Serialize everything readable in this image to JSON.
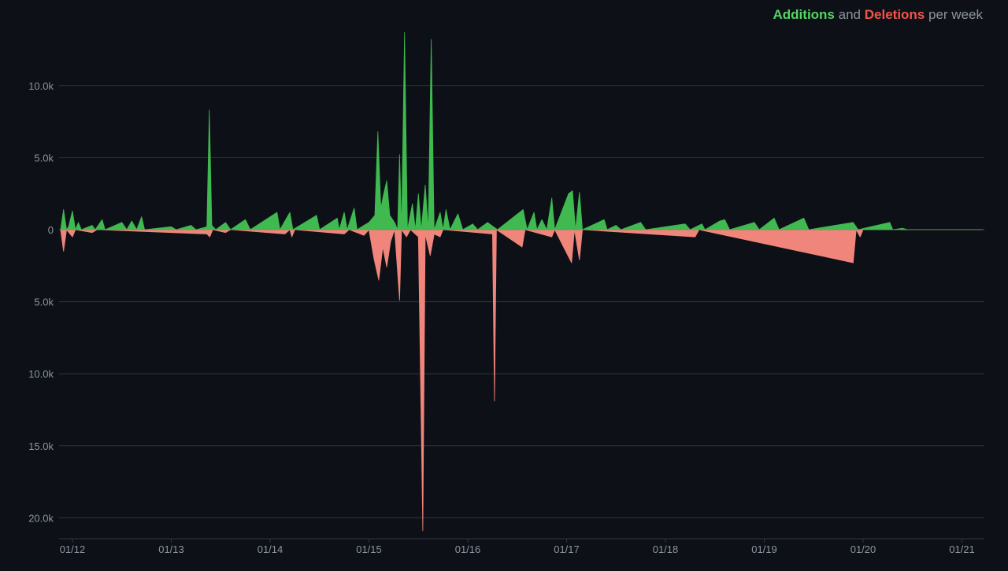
{
  "legend": {
    "additions": "Additions",
    "and": "and",
    "deletions": "Deletions",
    "per": "per week"
  },
  "colors": {
    "background": "#0d1117",
    "additions": "#3fb950",
    "deletions": "#f0857b",
    "grid": "#30363d",
    "axis_text": "#8b949e"
  },
  "chart_data": {
    "type": "area",
    "title": "Additions and Deletions per week",
    "xlabel": "",
    "ylabel": "",
    "grid": true,
    "legend_position": "top-right",
    "x_domain": [
      "01/12",
      "01/21"
    ],
    "xlim": [
      11.9,
      21.2
    ],
    "ylim": [
      -21000,
      13600
    ],
    "x_ticks": [
      "01/12",
      "01/13",
      "01/14",
      "01/15",
      "01/16",
      "01/17",
      "01/18",
      "01/19",
      "01/20",
      "01/21"
    ],
    "y_ticks": [
      {
        "value": 10000,
        "label": "10.0k"
      },
      {
        "value": 5000,
        "label": "5.0k"
      },
      {
        "value": 0,
        "label": "0"
      },
      {
        "value": -5000,
        "label": "5.0k"
      },
      {
        "value": -10000,
        "label": "10.0k"
      },
      {
        "value": -15000,
        "label": "15.0k"
      },
      {
        "value": -20000,
        "label": "20.0k"
      }
    ],
    "series": [
      {
        "name": "Additions",
        "points": [
          [
            11.88,
            0
          ],
          [
            11.91,
            1400
          ],
          [
            11.94,
            0
          ],
          [
            11.96,
            200
          ],
          [
            12.0,
            1300
          ],
          [
            12.03,
            0
          ],
          [
            12.06,
            500
          ],
          [
            12.09,
            0
          ],
          [
            12.2,
            300
          ],
          [
            12.23,
            0
          ],
          [
            12.3,
            700
          ],
          [
            12.33,
            0
          ],
          [
            12.5,
            500
          ],
          [
            12.55,
            0
          ],
          [
            12.6,
            600
          ],
          [
            12.65,
            0
          ],
          [
            12.7,
            900
          ],
          [
            12.73,
            0
          ],
          [
            13.0,
            200
          ],
          [
            13.05,
            0
          ],
          [
            13.2,
            300
          ],
          [
            13.25,
            0
          ],
          [
            13.36,
            200
          ],
          [
            13.385,
            8300
          ],
          [
            13.41,
            300
          ],
          [
            13.45,
            0
          ],
          [
            13.55,
            500
          ],
          [
            13.6,
            0
          ],
          [
            13.75,
            700
          ],
          [
            13.8,
            0
          ],
          [
            14.07,
            1200
          ],
          [
            14.1,
            0
          ],
          [
            14.2,
            1200
          ],
          [
            14.23,
            0
          ],
          [
            14.47,
            1000
          ],
          [
            14.5,
            0
          ],
          [
            14.68,
            800
          ],
          [
            14.7,
            0
          ],
          [
            14.75,
            1200
          ],
          [
            14.78,
            0
          ],
          [
            14.85,
            1500
          ],
          [
            14.88,
            0
          ],
          [
            14.95,
            300
          ],
          [
            15.0,
            500
          ],
          [
            15.06,
            1000
          ],
          [
            15.09,
            6800
          ],
          [
            15.12,
            1500
          ],
          [
            15.15,
            2500
          ],
          [
            15.18,
            3400
          ],
          [
            15.21,
            1000
          ],
          [
            15.26,
            500
          ],
          [
            15.29,
            0
          ],
          [
            15.31,
            5200
          ],
          [
            15.33,
            0
          ],
          [
            15.36,
            13700
          ],
          [
            15.39,
            0
          ],
          [
            15.44,
            1800
          ],
          [
            15.47,
            0
          ],
          [
            15.5,
            2500
          ],
          [
            15.53,
            0
          ],
          [
            15.57,
            3100
          ],
          [
            15.6,
            0
          ],
          [
            15.63,
            13200
          ],
          [
            15.66,
            0
          ],
          [
            15.72,
            1200
          ],
          [
            15.75,
            0
          ],
          [
            15.78,
            1400
          ],
          [
            15.82,
            0
          ],
          [
            15.9,
            1100
          ],
          [
            15.95,
            0
          ],
          [
            16.05,
            400
          ],
          [
            16.1,
            0
          ],
          [
            16.2,
            500
          ],
          [
            16.3,
            0
          ],
          [
            16.56,
            1400
          ],
          [
            16.6,
            0
          ],
          [
            16.67,
            1200
          ],
          [
            16.7,
            0
          ],
          [
            16.75,
            700
          ],
          [
            16.8,
            0
          ],
          [
            16.85,
            2200
          ],
          [
            16.88,
            0
          ],
          [
            17.02,
            2500
          ],
          [
            17.06,
            2700
          ],
          [
            17.09,
            0
          ],
          [
            17.13,
            2600
          ],
          [
            17.16,
            0
          ],
          [
            17.38,
            700
          ],
          [
            17.41,
            0
          ],
          [
            17.5,
            300
          ],
          [
            17.55,
            0
          ],
          [
            17.75,
            500
          ],
          [
            17.8,
            0
          ],
          [
            18.2,
            400
          ],
          [
            18.25,
            0
          ],
          [
            18.37,
            400
          ],
          [
            18.4,
            0
          ],
          [
            18.55,
            600
          ],
          [
            18.6,
            700
          ],
          [
            18.65,
            0
          ],
          [
            18.9,
            500
          ],
          [
            18.95,
            0
          ],
          [
            19.1,
            800
          ],
          [
            19.15,
            0
          ],
          [
            19.4,
            800
          ],
          [
            19.45,
            0
          ],
          [
            19.9,
            500
          ],
          [
            19.95,
            0
          ],
          [
            20.27,
            500
          ],
          [
            20.3,
            0
          ],
          [
            20.4,
            100
          ],
          [
            20.45,
            0
          ],
          [
            21.2,
            0
          ]
        ]
      },
      {
        "name": "Deletions",
        "points": [
          [
            11.88,
            0
          ],
          [
            11.91,
            -1500
          ],
          [
            11.94,
            0
          ],
          [
            12.0,
            -500
          ],
          [
            12.03,
            0
          ],
          [
            12.2,
            -200
          ],
          [
            12.25,
            0
          ],
          [
            13.36,
            -300
          ],
          [
            13.39,
            -500
          ],
          [
            13.42,
            0
          ],
          [
            13.55,
            -200
          ],
          [
            13.6,
            0
          ],
          [
            14.15,
            -300
          ],
          [
            14.2,
            0
          ],
          [
            14.22,
            -500
          ],
          [
            14.25,
            0
          ],
          [
            14.75,
            -300
          ],
          [
            14.8,
            0
          ],
          [
            14.95,
            -400
          ],
          [
            15.0,
            0
          ],
          [
            15.05,
            -2000
          ],
          [
            15.1,
            -3500
          ],
          [
            15.14,
            -1200
          ],
          [
            15.18,
            -2600
          ],
          [
            15.22,
            -800
          ],
          [
            15.26,
            0
          ],
          [
            15.31,
            -4900
          ],
          [
            15.33,
            0
          ],
          [
            15.38,
            -500
          ],
          [
            15.42,
            0
          ],
          [
            15.5,
            -500
          ],
          [
            15.545,
            -20900
          ],
          [
            15.57,
            -300
          ],
          [
            15.62,
            -1800
          ],
          [
            15.66,
            -300
          ],
          [
            15.72,
            -500
          ],
          [
            15.75,
            0
          ],
          [
            16.25,
            -300
          ],
          [
            16.27,
            -11900
          ],
          [
            16.29,
            0
          ],
          [
            16.55,
            -1200
          ],
          [
            16.58,
            0
          ],
          [
            16.85,
            -500
          ],
          [
            16.88,
            0
          ],
          [
            17.05,
            -2300
          ],
          [
            17.08,
            0
          ],
          [
            17.13,
            -2100
          ],
          [
            17.16,
            0
          ],
          [
            18.3,
            -500
          ],
          [
            18.34,
            0
          ],
          [
            19.9,
            -2300
          ],
          [
            19.93,
            0
          ],
          [
            19.97,
            -500
          ],
          [
            20.0,
            0
          ],
          [
            21.2,
            0
          ]
        ]
      }
    ]
  }
}
